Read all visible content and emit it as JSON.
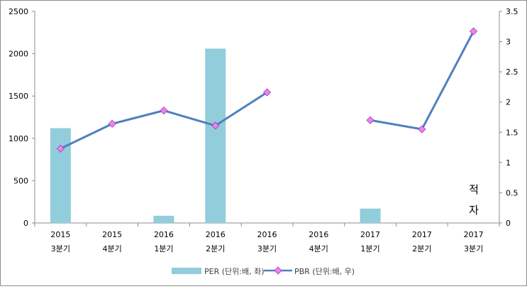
{
  "chart_data": {
    "type": "bar+line",
    "categories": [
      [
        "2015",
        "3분기"
      ],
      [
        "2015",
        "4분기"
      ],
      [
        "2016",
        "1분기"
      ],
      [
        "2016",
        "2분기"
      ],
      [
        "2016",
        "3분기"
      ],
      [
        "2016",
        "4분기"
      ],
      [
        "2017",
        "1분기"
      ],
      [
        "2017",
        "2분기"
      ],
      [
        "2017",
        "3분기"
      ]
    ],
    "series": [
      {
        "name": "PER (단위:배, 좌)",
        "type": "bar",
        "axis": "left",
        "color": "#92CDDC",
        "values": [
          1120,
          null,
          85,
          2060,
          null,
          null,
          170,
          null,
          null
        ]
      },
      {
        "name": "PBR (단위:배, 우)",
        "type": "line",
        "axis": "right",
        "color": "#4F81BD",
        "marker_color": "#EE82EE",
        "values": [
          1.23,
          1.64,
          1.86,
          1.61,
          2.16,
          null,
          1.7,
          1.55,
          3.17
        ]
      }
    ],
    "y_left": {
      "ylim": [
        0,
        2500
      ],
      "ticks": [
        "0",
        "500",
        "1000",
        "1500",
        "2000",
        "2500"
      ]
    },
    "y_right": {
      "ylim": [
        0,
        3.5
      ],
      "ticks": [
        "0",
        "0.5",
        "1",
        "1.5",
        "2",
        "2.5",
        "3",
        "3.5"
      ]
    },
    "annotation": [
      "적",
      "자"
    ],
    "grid": false,
    "legend_position": "bottom"
  }
}
